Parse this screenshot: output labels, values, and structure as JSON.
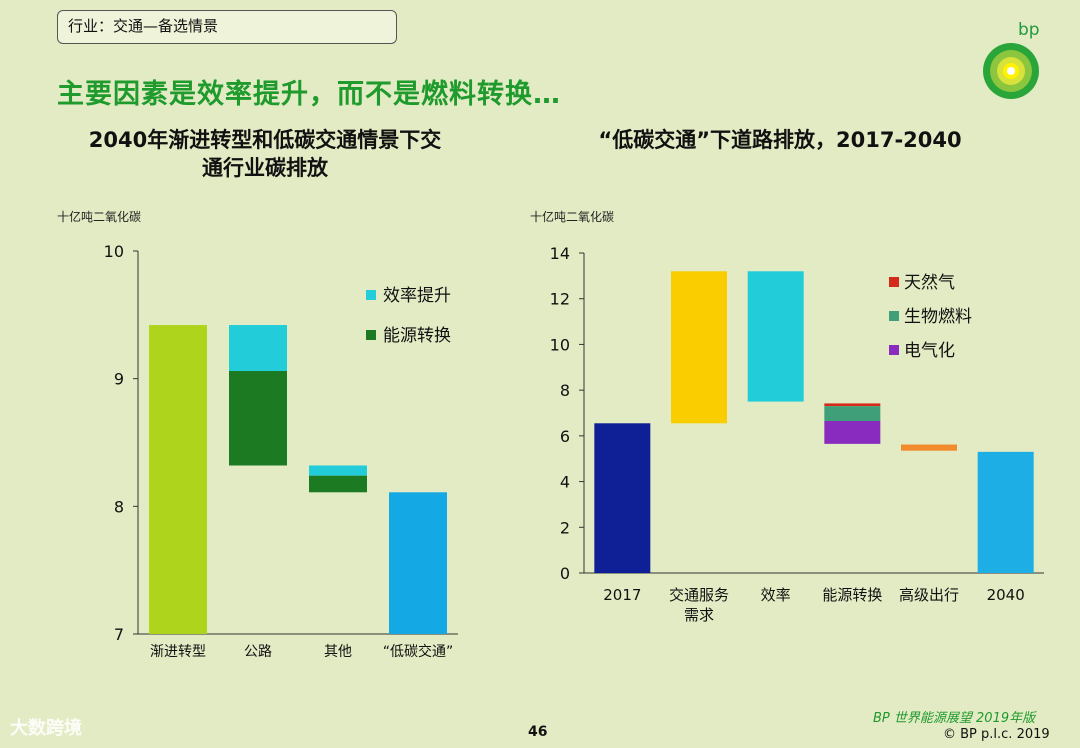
{
  "header": {
    "section_tag": "行业：交通—备选情景",
    "logo_text": "bp",
    "headline": "主要因素是效率提升，而不是燃料转换…"
  },
  "colors": {
    "background": "#e3ebc4",
    "headline": "#1f9a2d",
    "efficiency": "#22ccd8",
    "fuel_switch": "#1b7a22",
    "gradual": "#aed51b",
    "low_carbon": "#14a9e4",
    "y2017": "#0f1f96",
    "service_demand": "#f9cd00",
    "natural_gas": "#d42a1a",
    "biofuel": "#3f9f78",
    "electrification": "#8a2bbf",
    "advanced_mobility": "#f28a2e",
    "y2040": "#1daee6"
  },
  "left_chart": {
    "title_line1": "2040年渐进转型和低碳交通情景下交",
    "title_line2": "通行业碳排放",
    "unit": "十亿吨二氧化碳"
  },
  "right_chart": {
    "title": "“低碳交通”下道路排放，2017-2040",
    "unit": "十亿吨二氧化碳"
  },
  "chart_data": [
    {
      "type": "bar",
      "subtype": "waterfall",
      "categories": [
        "渐进转型",
        "公路",
        "其他",
        "“低碳交通”"
      ],
      "ylim": [
        7,
        10
      ],
      "yticks": [
        7,
        8,
        9,
        10
      ],
      "bars": [
        {
          "category": "渐进转型",
          "base": 7,
          "top": 9.42,
          "segment": "total"
        },
        {
          "category": "公路",
          "base": 9.06,
          "top": 9.42,
          "segment": "效率提升"
        },
        {
          "category": "公路",
          "base": 8.32,
          "top": 9.06,
          "segment": "能源转换"
        },
        {
          "category": "其他",
          "base": 8.24,
          "top": 8.32,
          "segment": "效率提升"
        },
        {
          "category": "其他",
          "base": 8.11,
          "top": 8.24,
          "segment": "能源转换"
        },
        {
          "category": "“低碳交通”",
          "base": 7,
          "top": 8.11,
          "segment": "total"
        }
      ],
      "legend": [
        "效率提升",
        "能源转换"
      ],
      "legend_position": "top-right",
      "grid": false
    },
    {
      "type": "bar",
      "subtype": "waterfall",
      "categories": [
        "2017",
        "交通服务需求",
        "效率",
        "能源转换",
        "高级出行",
        "2040"
      ],
      "category_lines": [
        [
          "2017"
        ],
        [
          "交通服务",
          "需求"
        ],
        [
          "效率"
        ],
        [
          "能源转换"
        ],
        [
          "高级出行"
        ],
        [
          "2040"
        ]
      ],
      "ylim": [
        0,
        14
      ],
      "yticks": [
        0,
        2,
        4,
        6,
        8,
        10,
        12,
        14
      ],
      "bars": [
        {
          "category": "2017",
          "base": 0,
          "top": 6.55,
          "segment": "total"
        },
        {
          "category": "交通服务需求",
          "base": 6.55,
          "top": 13.2,
          "segment": "increase"
        },
        {
          "category": "效率",
          "base": 7.5,
          "top": 13.2,
          "segment": "decrease"
        },
        {
          "category": "能源转换",
          "base": 7.3,
          "top": 7.42,
          "segment": "天然气"
        },
        {
          "category": "能源转换",
          "base": 6.65,
          "top": 7.3,
          "segment": "生物燃料"
        },
        {
          "category": "能源转换",
          "base": 5.65,
          "top": 6.65,
          "segment": "电气化"
        },
        {
          "category": "高级出行",
          "base": 5.35,
          "top": 5.62,
          "segment": "decrease"
        },
        {
          "category": "2040",
          "base": 0,
          "top": 5.3,
          "segment": "total"
        }
      ],
      "legend": [
        "天然气",
        "生物燃料",
        "电气化"
      ],
      "legend_position": "top-right",
      "grid": false
    }
  ],
  "footer": {
    "page_number": "46",
    "brand": "BP 世界能源展望 2019年版",
    "copyright": "© BP p.l.c. 2019",
    "watermark": "大数跨境"
  }
}
